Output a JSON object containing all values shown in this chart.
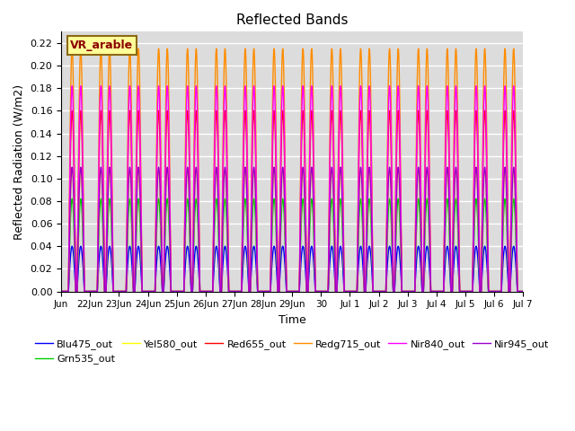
{
  "title": "Reflected Bands",
  "xlabel": "Time",
  "ylabel": "Reflected Radiation (W/m2)",
  "annotation_text": "VR_arable",
  "annotation_color": "#8B0000",
  "annotation_bg": "#FFFF99",
  "annotation_border": "#8B6914",
  "ylim": [
    0.0,
    0.23
  ],
  "yticks": [
    0.0,
    0.02,
    0.04,
    0.06,
    0.08,
    0.1,
    0.12,
    0.14,
    0.16,
    0.18,
    0.2,
    0.22
  ],
  "series": [
    {
      "label": "Blu475_out",
      "color": "#0000FF",
      "amplitude": 0.04
    },
    {
      "label": "Grn535_out",
      "color": "#00CC00",
      "amplitude": 0.082
    },
    {
      "label": "Yel580_out",
      "color": "#FFFF00",
      "amplitude": 0.108
    },
    {
      "label": "Red655_out",
      "color": "#FF0000",
      "amplitude": 0.16
    },
    {
      "label": "Redg715_out",
      "color": "#FF8C00",
      "amplitude": 0.215
    },
    {
      "label": "Nir840_out",
      "color": "#FF00FF",
      "amplitude": 0.182
    },
    {
      "label": "Nir945_out",
      "color": "#9900CC",
      "amplitude": 0.11
    }
  ],
  "n_days": 16,
  "points_per_day": 500,
  "tick_labels": [
    "Jun",
    "22Jun",
    "23Jun",
    "24Jun",
    "25Jun",
    "26Jun",
    "27Jun",
    "28Jun",
    "29Jun",
    "30",
    "Jul 1",
    "Jul 2",
    "Jul 3",
    "Jul 4",
    "Jul 5",
    "Jul 6",
    "Jul 7"
  ],
  "background_color": "#DCDCDC",
  "grid_color": "#FFFFFF",
  "figsize": [
    6.4,
    4.8
  ],
  "dpi": 100
}
